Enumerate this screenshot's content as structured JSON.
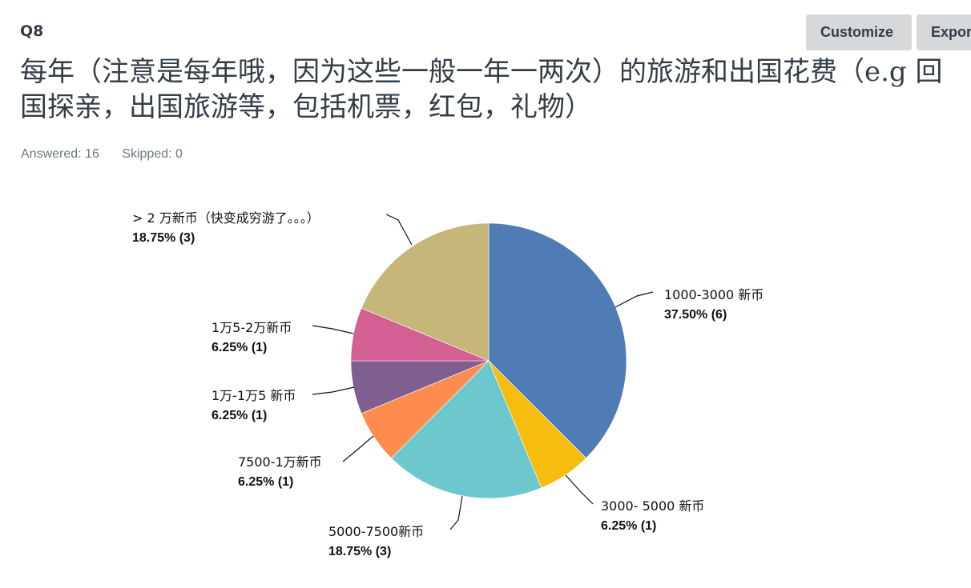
{
  "question": {
    "number": "Q8",
    "title": "每年（注意是每年哦，因为这些一般一年一两次）的旅游和出国花费（e.g 回国探亲，出国旅游等，包括机票，红包，礼物）",
    "answered": "Answered: 16",
    "skipped": "Skipped: 0"
  },
  "toolbar": {
    "customize_label": "Customize",
    "export_label": "Export"
  },
  "chart_data": {
    "type": "pie",
    "categories": [
      "1000-3000 新币",
      "3000- 5000 新币",
      "5000-7500新币",
      "7500-1万新币",
      "1万-1万5 新币",
      "1万5-2万新币",
      "> 2 万新币（快变成穷游了。。。）"
    ],
    "values": [
      37.5,
      6.25,
      18.75,
      6.25,
      6.25,
      6.25,
      18.75
    ],
    "counts": [
      6,
      1,
      3,
      1,
      1,
      1,
      3
    ],
    "value_labels": [
      "37.50% (6)",
      "6.25% (1)",
      "18.75% (3)",
      "6.25% (1)",
      "6.25% (1)",
      "6.25% (1)",
      "18.75% (3)"
    ],
    "colors": [
      "#507cb6",
      "#f6bd0f",
      "#6dc8cd",
      "#fe8c4f",
      "#7f5f8f",
      "#d45f92",
      "#c7b679"
    ],
    "start_angle": "12 o'clock",
    "direction": "clockwise"
  }
}
